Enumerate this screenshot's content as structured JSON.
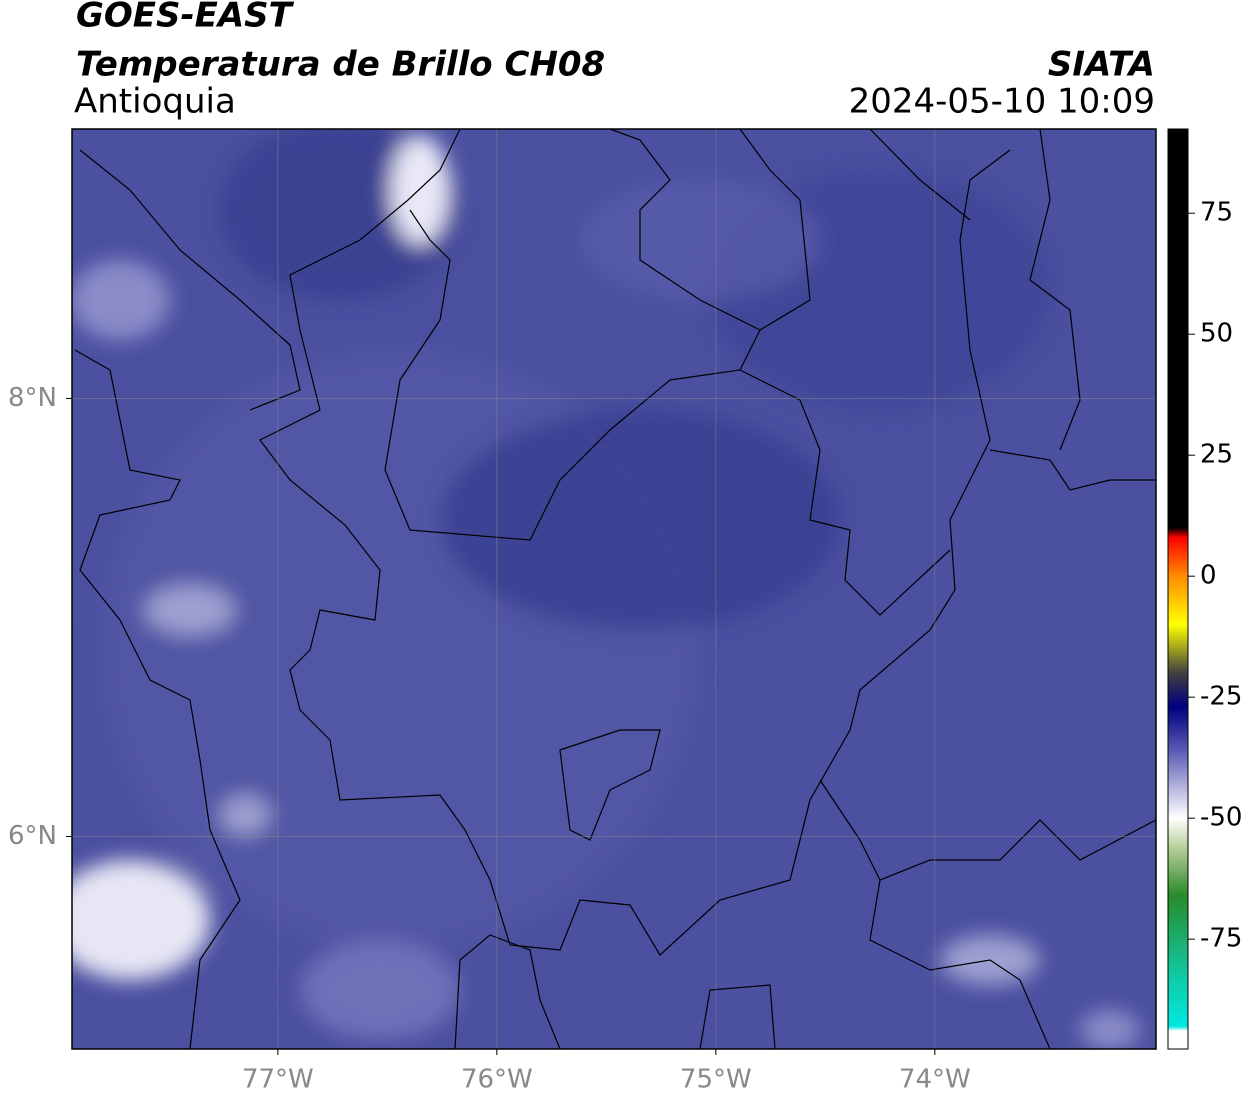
{
  "header": {
    "title": "GOES-EAST",
    "subtitle": "Temperatura de Brillo CH08",
    "region": "Antioquia",
    "source": "SIATA",
    "datetime": "2024-05-10 10:09"
  },
  "map": {
    "xlim": [
      -77.94,
      -72.99
    ],
    "ylim": [
      5.03,
      9.23
    ],
    "xticks": [
      {
        "value": -77,
        "label": "77°W"
      },
      {
        "value": -76,
        "label": "76°W"
      },
      {
        "value": -75,
        "label": "75°W"
      },
      {
        "value": -74,
        "label": "74°W"
      }
    ],
    "yticks": [
      {
        "value": 6,
        "label": "6°N"
      },
      {
        "value": 8,
        "label": "8°N"
      }
    ],
    "grid": true,
    "background": "#4b50a0"
  },
  "colorbar": {
    "lim": [
      -97.7,
      92.4
    ],
    "ticks": [
      75,
      50,
      25,
      0,
      -25,
      -50,
      -75
    ],
    "stops": [
      {
        "value": 92.4,
        "color": "#000000"
      },
      {
        "value": 10,
        "color": "#000000"
      },
      {
        "value": 8,
        "color": "#ff0000"
      },
      {
        "value": 0,
        "color": "#ff8c00"
      },
      {
        "value": -10,
        "color": "#ffff00"
      },
      {
        "value": -20,
        "color": "#404040"
      },
      {
        "value": -27,
        "color": "#000080"
      },
      {
        "value": -36,
        "color": "#5a5ab4"
      },
      {
        "value": -46,
        "color": "#d0d0ec"
      },
      {
        "value": -50,
        "color": "#ffffff"
      },
      {
        "value": -56,
        "color": "#b8d09a"
      },
      {
        "value": -66,
        "color": "#2a8a2a"
      },
      {
        "value": -82,
        "color": "#10c8a0"
      },
      {
        "value": -93,
        "color": "#00e8e0"
      },
      {
        "value": -94,
        "color": "#ffffff"
      },
      {
        "value": -97.7,
        "color": "#ffffff"
      }
    ]
  }
}
